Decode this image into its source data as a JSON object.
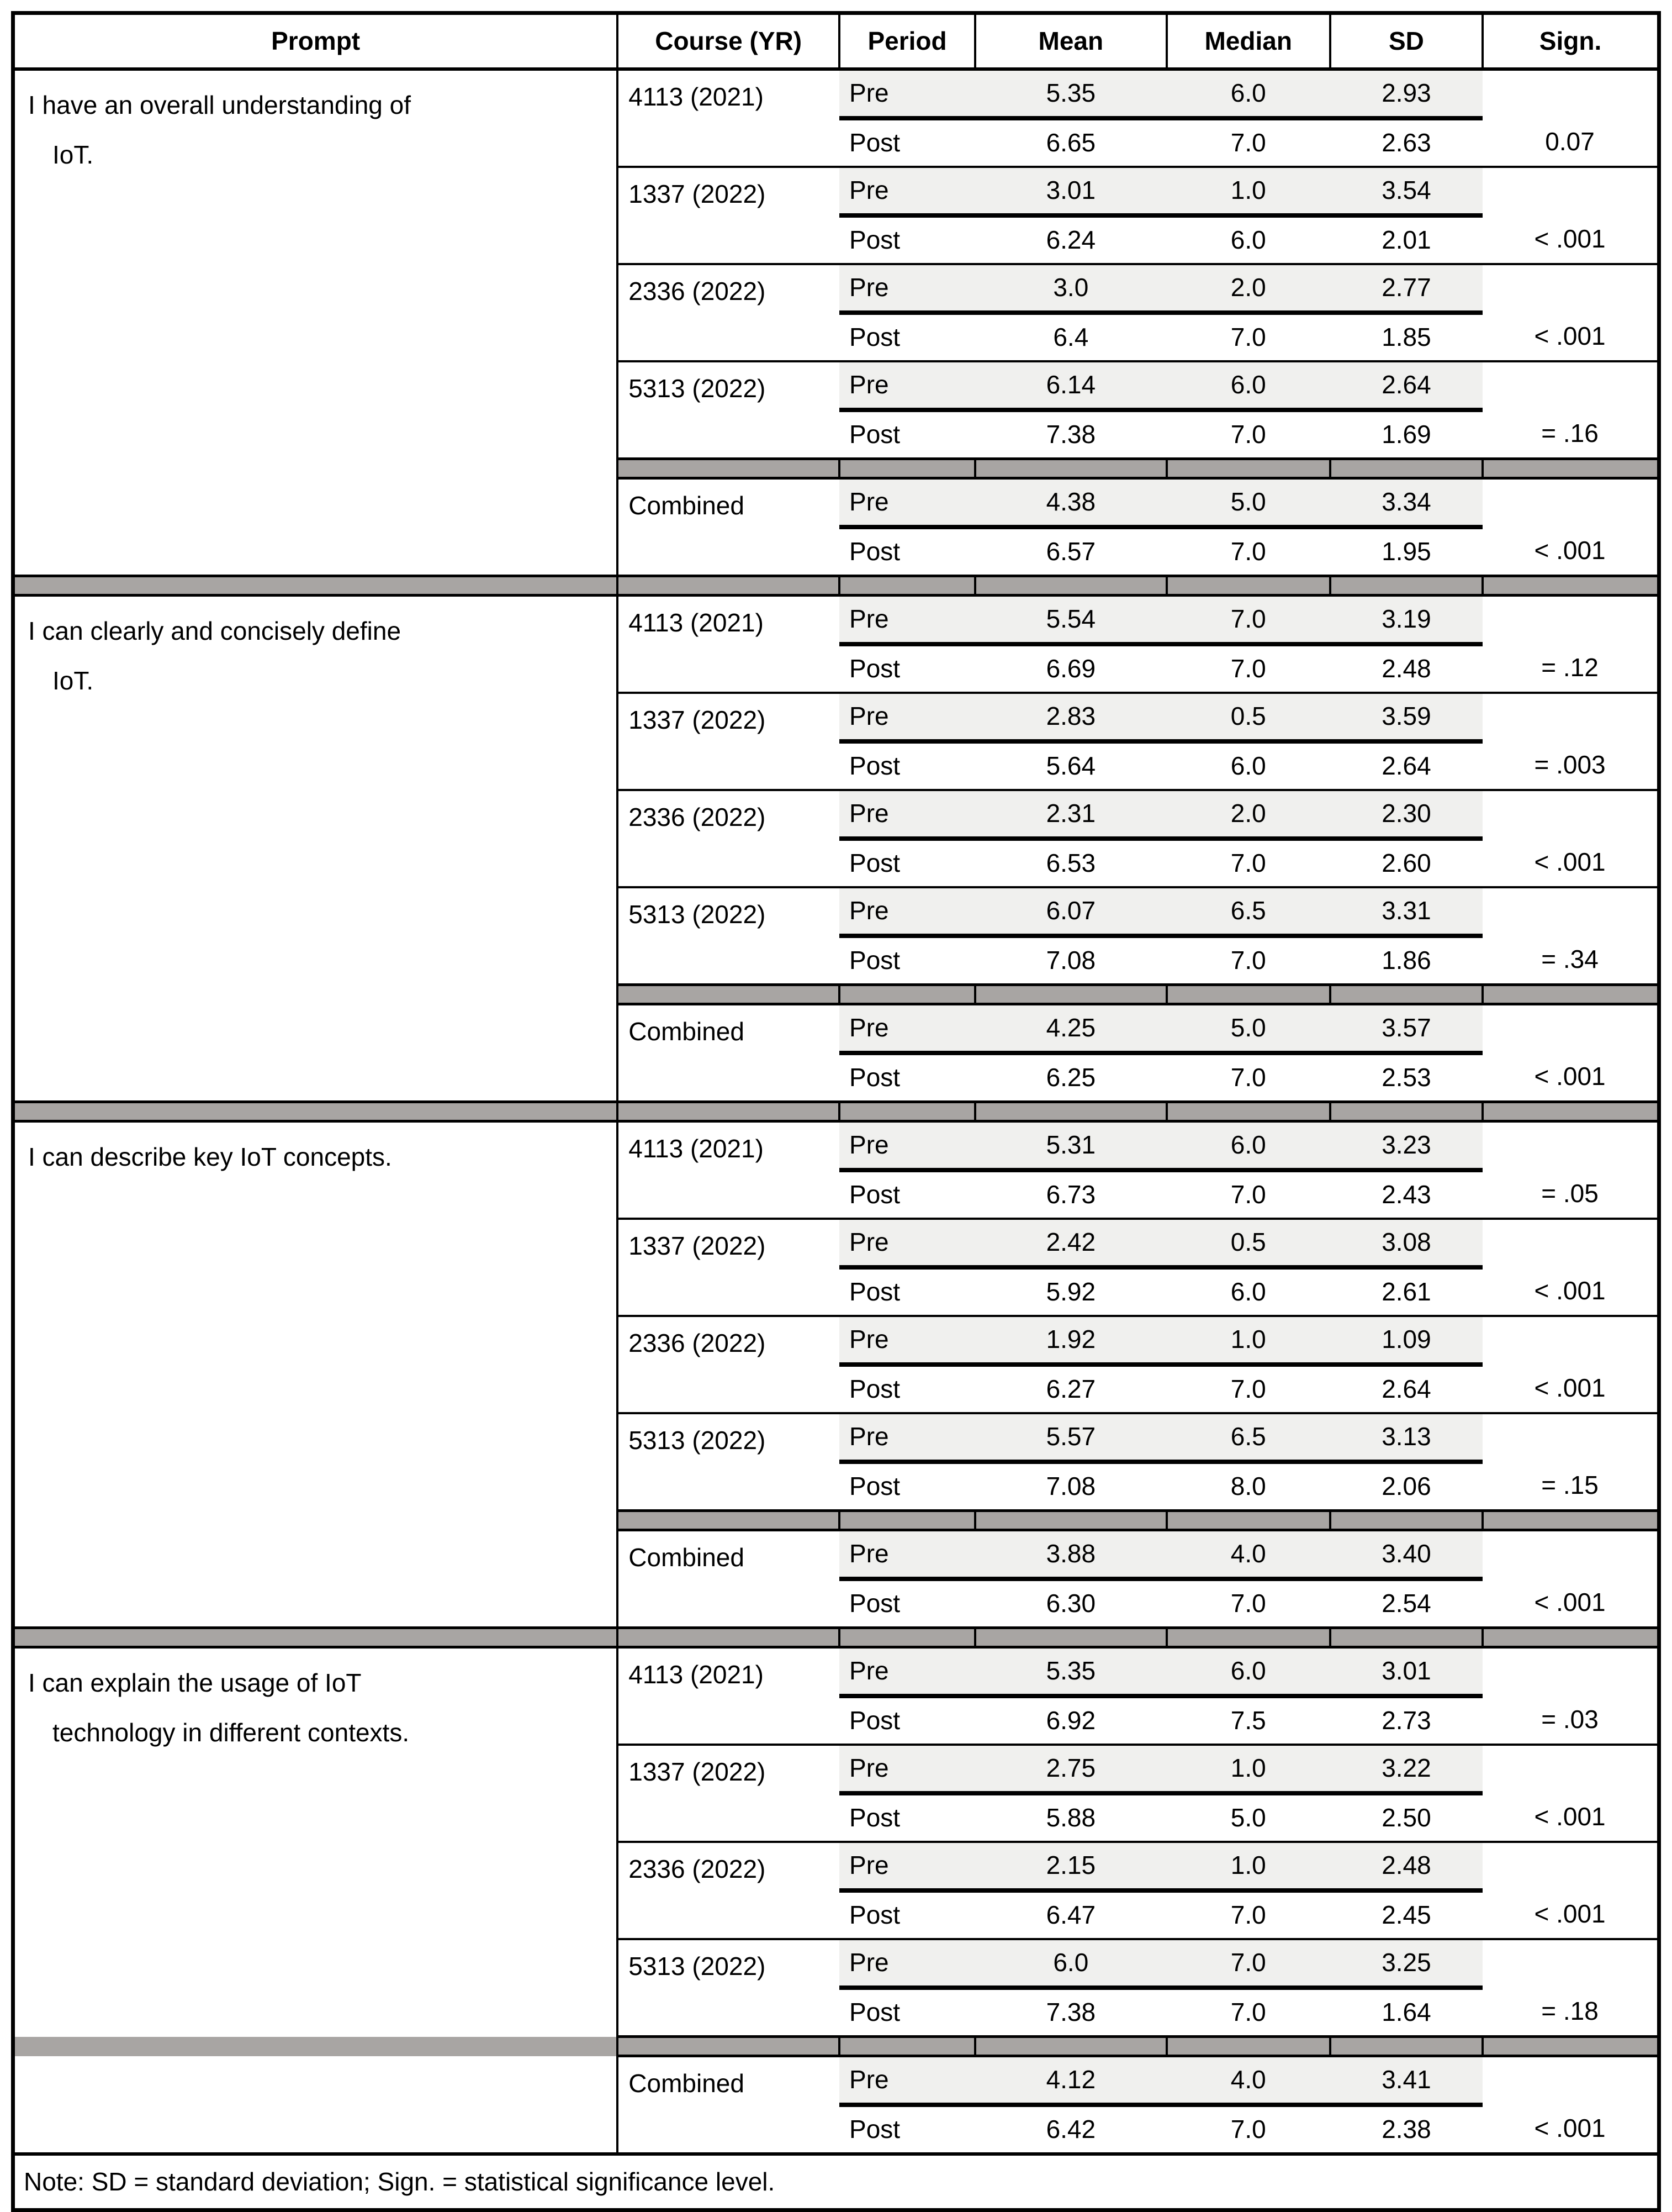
{
  "header": {
    "columns": [
      "Prompt",
      "Course (YR)",
      "Period",
      "Mean",
      "Median",
      "SD",
      "Sign."
    ]
  },
  "period_labels": {
    "pre": "Pre",
    "post": "Post"
  },
  "note": "Note: SD = standard deviation; Sign. = statistical significance level.",
  "colors": {
    "pre_row_shading": "#f0f0ee",
    "separator_band": "#a8a5a3",
    "border": "#000000"
  },
  "blocks": [
    {
      "prompt_lines": [
        "I have an overall understanding of",
        "IoT."
      ],
      "groups": [
        {
          "course": "4113 (2021)",
          "pre": {
            "mean": "5.35",
            "median": "6.0",
            "sd": "2.93"
          },
          "post": {
            "mean": "6.65",
            "median": "7.0",
            "sd": "2.63"
          },
          "sign": "0.07"
        },
        {
          "course": "1337 (2022)",
          "pre": {
            "mean": "3.01",
            "median": "1.0",
            "sd": "3.54"
          },
          "post": {
            "mean": "6.24",
            "median": "6.0",
            "sd": "2.01"
          },
          "sign": "< .001"
        },
        {
          "course": "2336 (2022)",
          "pre": {
            "mean": "3.0",
            "median": "2.0",
            "sd": "2.77"
          },
          "post": {
            "mean": "6.4",
            "median": "7.0",
            "sd": "1.85"
          },
          "sign": "< .001"
        },
        {
          "course": "5313 (2022)",
          "pre": {
            "mean": "6.14",
            "median": "6.0",
            "sd": "2.64"
          },
          "post": {
            "mean": "7.38",
            "median": "7.0",
            "sd": "1.69"
          },
          "sign": "= .16"
        },
        {
          "course": "Combined",
          "pre": {
            "mean": "4.38",
            "median": "5.0",
            "sd": "3.34"
          },
          "post": {
            "mean": "6.57",
            "median": "7.0",
            "sd": "1.95"
          },
          "sign": "< .001"
        }
      ]
    },
    {
      "prompt_lines": [
        "I can clearly and concisely define",
        "IoT."
      ],
      "groups": [
        {
          "course": "4113 (2021)",
          "pre": {
            "mean": "5.54",
            "median": "7.0",
            "sd": "3.19"
          },
          "post": {
            "mean": "6.69",
            "median": "7.0",
            "sd": "2.48"
          },
          "sign": "= .12"
        },
        {
          "course": "1337 (2022)",
          "pre": {
            "mean": "2.83",
            "median": "0.5",
            "sd": "3.59"
          },
          "post": {
            "mean": "5.64",
            "median": "6.0",
            "sd": "2.64"
          },
          "sign": "= .003"
        },
        {
          "course": "2336 (2022)",
          "pre": {
            "mean": "2.31",
            "median": "2.0",
            "sd": "2.30"
          },
          "post": {
            "mean": "6.53",
            "median": "7.0",
            "sd": "2.60"
          },
          "sign": "< .001"
        },
        {
          "course": "5313 (2022)",
          "pre": {
            "mean": "6.07",
            "median": "6.5",
            "sd": "3.31"
          },
          "post": {
            "mean": "7.08",
            "median": "7.0",
            "sd": "1.86"
          },
          "sign": "= .34"
        },
        {
          "course": "Combined",
          "pre": {
            "mean": "4.25",
            "median": "5.0",
            "sd": "3.57"
          },
          "post": {
            "mean": "6.25",
            "median": "7.0",
            "sd": "2.53"
          },
          "sign": "< .001"
        }
      ]
    },
    {
      "prompt_lines": [
        "I can describe key IoT concepts."
      ],
      "groups": [
        {
          "course": "4113 (2021)",
          "pre": {
            "mean": "5.31",
            "median": "6.0",
            "sd": "3.23"
          },
          "post": {
            "mean": "6.73",
            "median": "7.0",
            "sd": "2.43"
          },
          "sign": "= .05"
        },
        {
          "course": "1337 (2022)",
          "pre": {
            "mean": "2.42",
            "median": "0.5",
            "sd": "3.08"
          },
          "post": {
            "mean": "5.92",
            "median": "6.0",
            "sd": "2.61"
          },
          "sign": "< .001"
        },
        {
          "course": "2336 (2022)",
          "pre": {
            "mean": "1.92",
            "median": "1.0",
            "sd": "1.09"
          },
          "post": {
            "mean": "6.27",
            "median": "7.0",
            "sd": "2.64"
          },
          "sign": "< .001"
        },
        {
          "course": "5313 (2022)",
          "pre": {
            "mean": "5.57",
            "median": "6.5",
            "sd": "3.13"
          },
          "post": {
            "mean": "7.08",
            "median": "8.0",
            "sd": "2.06"
          },
          "sign": "= .15"
        },
        {
          "course": "Combined",
          "pre": {
            "mean": "3.88",
            "median": "4.0",
            "sd": "3.40"
          },
          "post": {
            "mean": "6.30",
            "median": "7.0",
            "sd": "2.54"
          },
          "sign": "< .001"
        }
      ]
    },
    {
      "prompt_lines": [
        "I can explain the usage of IoT",
        "technology in different contexts."
      ],
      "groups": [
        {
          "course": "4113 (2021)",
          "pre": {
            "mean": "5.35",
            "median": "6.0",
            "sd": "3.01"
          },
          "post": {
            "mean": "6.92",
            "median": "7.5",
            "sd": "2.73"
          },
          "sign": "= .03"
        },
        {
          "course": "1337 (2022)",
          "pre": {
            "mean": "2.75",
            "median": "1.0",
            "sd": "3.22"
          },
          "post": {
            "mean": "5.88",
            "median": "5.0",
            "sd": "2.50"
          },
          "sign": "< .001"
        },
        {
          "course": "2336 (2022)",
          "pre": {
            "mean": "2.15",
            "median": "1.0",
            "sd": "2.48"
          },
          "post": {
            "mean": "6.47",
            "median": "7.0",
            "sd": "2.45"
          },
          "sign": "< .001"
        },
        {
          "course": "5313 (2022)",
          "pre": {
            "mean": "6.0",
            "median": "7.0",
            "sd": "3.25"
          },
          "post": {
            "mean": "7.38",
            "median": "7.0",
            "sd": "1.64"
          },
          "sign": "= .18"
        },
        {
          "course": "Combined",
          "pre": {
            "mean": "4.12",
            "median": "4.0",
            "sd": "3.41"
          },
          "post": {
            "mean": "6.42",
            "median": "7.0",
            "sd": "2.38"
          },
          "sign": "< .001"
        }
      ]
    }
  ]
}
